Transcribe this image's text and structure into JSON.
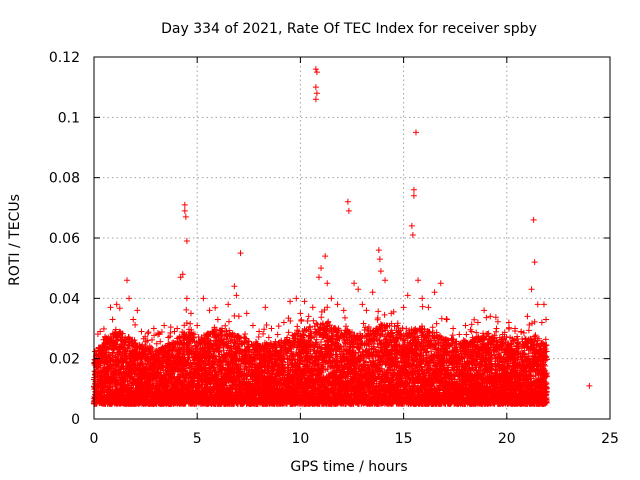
{
  "chart_data": {
    "type": "scatter",
    "title": "Day 334 of 2021, Rate Of TEC Index for receiver spby",
    "xlabel": "GPS time / hours",
    "ylabel": "ROTI / TECUs",
    "xlim": [
      0,
      25
    ],
    "ylim": [
      0,
      0.12
    ],
    "xticks": [
      0,
      5,
      10,
      15,
      20,
      25
    ],
    "xtick_labels": [
      "0",
      "5",
      "10",
      "15",
      "20",
      "25"
    ],
    "yticks": [
      0,
      0.02,
      0.04,
      0.06,
      0.08,
      0.1,
      0.12
    ],
    "ytick_labels": [
      "0",
      "0.02",
      "0.04",
      "0.06",
      "0.08",
      "0.1",
      "0.12"
    ],
    "grid": true,
    "marker": "+",
    "color": "#ff0000",
    "points": [
      [
        0.3,
        0.029
      ],
      [
        0.5,
        0.024
      ],
      [
        0.8,
        0.037
      ],
      [
        0.9,
        0.033
      ],
      [
        1.1,
        0.038
      ],
      [
        1.6,
        0.046
      ],
      [
        1.7,
        0.04
      ],
      [
        1.9,
        0.033
      ],
      [
        2.1,
        0.036
      ],
      [
        2.3,
        0.029
      ],
      [
        2.6,
        0.026
      ],
      [
        2.9,
        0.03
      ],
      [
        3.1,
        0.028
      ],
      [
        3.4,
        0.031
      ],
      [
        3.6,
        0.027
      ],
      [
        3.9,
        0.029
      ],
      [
        4.2,
        0.047
      ],
      [
        4.3,
        0.048
      ],
      [
        4.4,
        0.071
      ],
      [
        4.4,
        0.069
      ],
      [
        4.45,
        0.067
      ],
      [
        4.5,
        0.059
      ],
      [
        4.5,
        0.04
      ],
      [
        4.7,
        0.035
      ],
      [
        5.0,
        0.031
      ],
      [
        5.3,
        0.04
      ],
      [
        5.6,
        0.036
      ],
      [
        6.0,
        0.033
      ],
      [
        6.2,
        0.03
      ],
      [
        6.5,
        0.038
      ],
      [
        6.8,
        0.044
      ],
      [
        6.9,
        0.041
      ],
      [
        7.1,
        0.055
      ],
      [
        7.4,
        0.035
      ],
      [
        7.7,
        0.031
      ],
      [
        8.0,
        0.029
      ],
      [
        8.3,
        0.037
      ],
      [
        8.6,
        0.03
      ],
      [
        8.9,
        0.028
      ],
      [
        9.2,
        0.032
      ],
      [
        9.5,
        0.039
      ],
      [
        9.8,
        0.04
      ],
      [
        10.0,
        0.035
      ],
      [
        10.2,
        0.039
      ],
      [
        10.4,
        0.034
      ],
      [
        10.6,
        0.037
      ],
      [
        10.75,
        0.116
      ],
      [
        10.8,
        0.115
      ],
      [
        10.75,
        0.11
      ],
      [
        10.8,
        0.108
      ],
      [
        10.75,
        0.106
      ],
      [
        10.9,
        0.047
      ],
      [
        11.0,
        0.05
      ],
      [
        11.2,
        0.054
      ],
      [
        11.3,
        0.045
      ],
      [
        11.5,
        0.04
      ],
      [
        11.8,
        0.038
      ],
      [
        12.1,
        0.036
      ],
      [
        12.3,
        0.072
      ],
      [
        12.35,
        0.069
      ],
      [
        12.6,
        0.045
      ],
      [
        12.8,
        0.043
      ],
      [
        13.0,
        0.038
      ],
      [
        13.2,
        0.036
      ],
      [
        13.5,
        0.042
      ],
      [
        13.8,
        0.056
      ],
      [
        13.85,
        0.053
      ],
      [
        13.9,
        0.049
      ],
      [
        14.1,
        0.046
      ],
      [
        14.4,
        0.035
      ],
      [
        14.7,
        0.031
      ],
      [
        15.0,
        0.037
      ],
      [
        15.2,
        0.041
      ],
      [
        15.4,
        0.064
      ],
      [
        15.45,
        0.061
      ],
      [
        15.5,
        0.076
      ],
      [
        15.5,
        0.074
      ],
      [
        15.6,
        0.095
      ],
      [
        15.7,
        0.046
      ],
      [
        15.9,
        0.04
      ],
      [
        16.2,
        0.037
      ],
      [
        16.5,
        0.042
      ],
      [
        16.8,
        0.045
      ],
      [
        17.1,
        0.033
      ],
      [
        17.4,
        0.03
      ],
      [
        17.7,
        0.028
      ],
      [
        18.0,
        0.031
      ],
      [
        18.3,
        0.029
      ],
      [
        18.6,
        0.032
      ],
      [
        18.9,
        0.036
      ],
      [
        19.2,
        0.034
      ],
      [
        19.5,
        0.03
      ],
      [
        19.8,
        0.028
      ],
      [
        20.1,
        0.032
      ],
      [
        20.4,
        0.03
      ],
      [
        20.7,
        0.029
      ],
      [
        21.0,
        0.034
      ],
      [
        21.2,
        0.043
      ],
      [
        21.3,
        0.066
      ],
      [
        21.35,
        0.052
      ],
      [
        21.5,
        0.038
      ],
      [
        21.7,
        0.032
      ],
      [
        21.8,
        0.038
      ],
      [
        21.9,
        0.033
      ],
      [
        24.0,
        0.011
      ]
    ]
  }
}
